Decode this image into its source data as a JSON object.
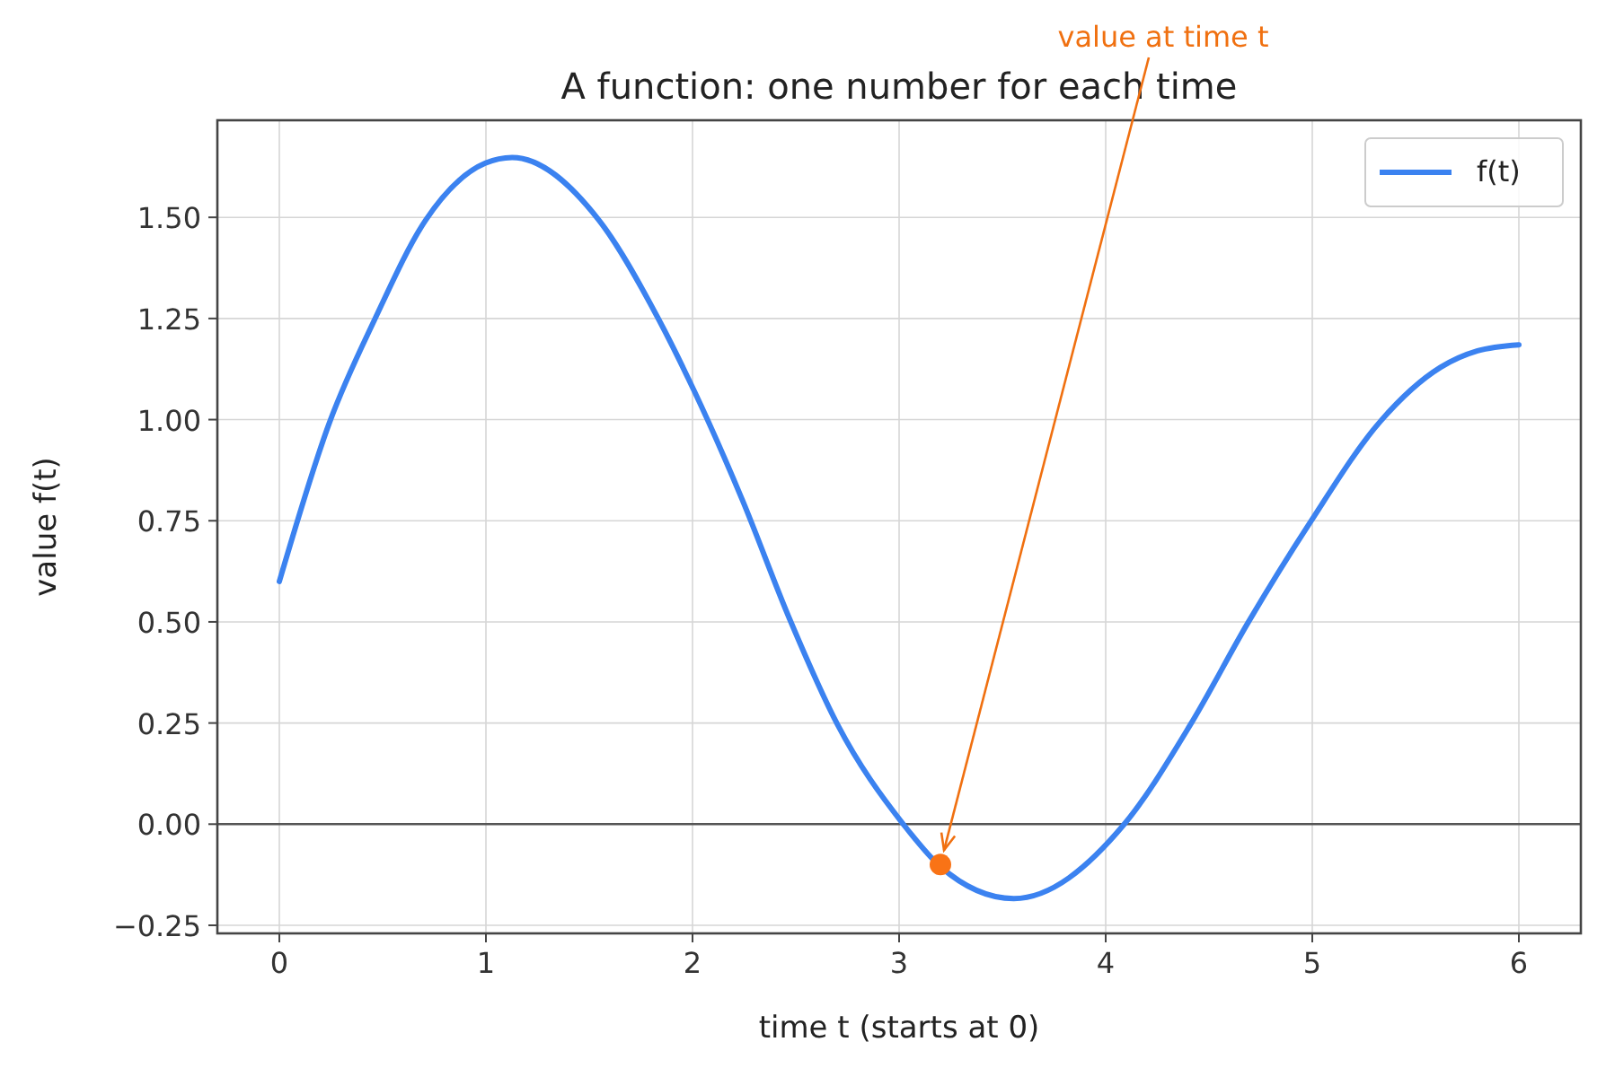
{
  "chart_data": {
    "type": "line",
    "title": "A function: one number for each time",
    "xlabel": "time  t  (starts at 0)",
    "ylabel": "value  f(t)",
    "annotations": [
      {
        "text": "value at time t",
        "x": 3.2,
        "y": -0.1
      }
    ],
    "series": [
      {
        "name": "f(t)",
        "color": "#3b82f0",
        "marker": "none",
        "x": [
          0,
          0.245,
          0.462,
          0.708,
          0.997,
          1.127,
          1.547,
          1.836,
          2.009,
          2.24,
          2.471,
          2.702,
          3.02,
          3.2,
          3.555,
          4.09,
          4.41,
          4.69,
          4.986,
          5.33,
          5.62,
          5.8,
          6
        ],
        "values": [
          0.6,
          0.996,
          1.248,
          1.493,
          1.634,
          1.648,
          1.493,
          1.248,
          1.07,
          0.803,
          0.506,
          0.246,
          0,
          -0.105,
          -0.184,
          0,
          0.246,
          0.499,
          0.743,
          0.996,
          1.129,
          1.17,
          1.185
        ]
      },
      {
        "type": "scatter",
        "color": "#f97316",
        "marker": "circle",
        "x": [
          3.2
        ],
        "values": [
          -0.1
        ]
      }
    ],
    "ref_lines": [
      {
        "axis": "y",
        "value": 0,
        "color": "#555555"
      }
    ],
    "xlim": [
      -0.3,
      6.3
    ],
    "xticks": [
      0,
      1,
      2,
      3,
      4,
      5,
      6
    ],
    "ylim": [
      -0.27,
      1.74
    ],
    "yticks": [
      {
        "value": -0.25,
        "label": "−0.25"
      },
      {
        "value": 0,
        "label": "0.00"
      },
      {
        "value": 0.25,
        "label": "0.25"
      },
      {
        "value": 0.5,
        "label": "0.50"
      },
      {
        "value": 0.75,
        "label": "0.75"
      },
      {
        "value": 1,
        "label": "1.00"
      },
      {
        "value": 1.25,
        "label": "1.25"
      },
      {
        "value": 1.5,
        "label": "1.50"
      }
    ],
    "grid": true,
    "legend": "top right"
  }
}
